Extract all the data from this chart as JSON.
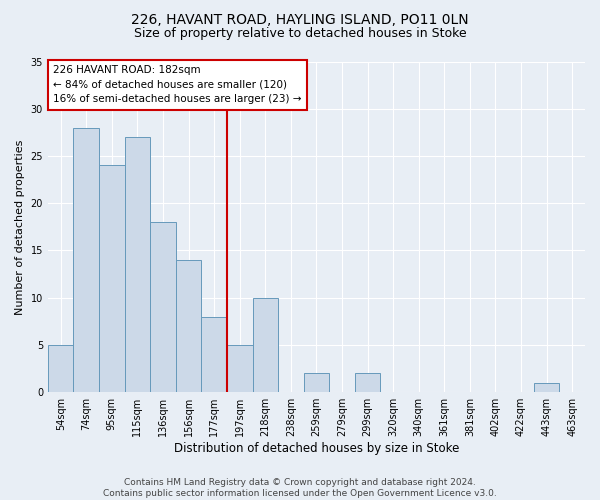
{
  "title1": "226, HAVANT ROAD, HAYLING ISLAND, PO11 0LN",
  "title2": "Size of property relative to detached houses in Stoke",
  "xlabel": "Distribution of detached houses by size in Stoke",
  "ylabel": "Number of detached properties",
  "categories": [
    "54sqm",
    "74sqm",
    "95sqm",
    "115sqm",
    "136sqm",
    "156sqm",
    "177sqm",
    "197sqm",
    "218sqm",
    "238sqm",
    "259sqm",
    "279sqm",
    "299sqm",
    "320sqm",
    "340sqm",
    "361sqm",
    "381sqm",
    "402sqm",
    "422sqm",
    "443sqm",
    "463sqm"
  ],
  "values": [
    5,
    28,
    24,
    27,
    18,
    14,
    8,
    5,
    10,
    0,
    2,
    0,
    2,
    0,
    0,
    0,
    0,
    0,
    0,
    1,
    0
  ],
  "bar_color": "#ccd9e8",
  "bar_edge_color": "#6699bb",
  "bg_color": "#e8eef5",
  "grid_color": "#ffffff",
  "vline_color": "#cc0000",
  "annotation_lines": [
    "226 HAVANT ROAD: 182sqm",
    "← 84% of detached houses are smaller (120)",
    "16% of semi-detached houses are larger (23) →"
  ],
  "annotation_box_color": "#ffffff",
  "annotation_box_edge": "#cc0000",
  "ylim": [
    0,
    35
  ],
  "yticks": [
    0,
    5,
    10,
    15,
    20,
    25,
    30,
    35
  ],
  "footer": "Contains HM Land Registry data © Crown copyright and database right 2024.\nContains public sector information licensed under the Open Government Licence v3.0.",
  "title1_fontsize": 10,
  "title2_fontsize": 9,
  "xlabel_fontsize": 8.5,
  "ylabel_fontsize": 8,
  "tick_fontsize": 7,
  "annotation_fontsize": 7.5,
  "footer_fontsize": 6.5
}
